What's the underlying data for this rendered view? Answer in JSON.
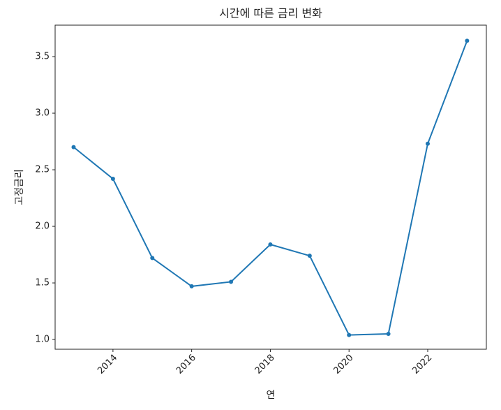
{
  "chart_data": {
    "type": "line",
    "title": "시간에 따른 금리 변화",
    "xlabel": "연",
    "ylabel": "고정금리",
    "x": [
      2013,
      2014,
      2015,
      2016,
      2017,
      2018,
      2019,
      2020,
      2021,
      2022,
      2023
    ],
    "series": [
      {
        "color": "#1f77b4",
        "values": [
          2.7,
          2.42,
          1.72,
          1.47,
          1.51,
          1.84,
          1.74,
          1.04,
          1.05,
          2.73,
          3.64
        ]
      }
    ],
    "xlim": [
      2012.53,
      2023.49
    ],
    "xticks": [
      2014,
      2016,
      2018,
      2020,
      2022
    ],
    "ylim": [
      0.914,
      3.778
    ],
    "yticks": [
      {
        "value": 1.0,
        "label": "1.0"
      },
      1.5,
      {
        "value": 2.0,
        "label": "2.0"
      },
      2.5,
      {
        "value": 3.0,
        "label": "3.0"
      },
      3.5
    ]
  }
}
